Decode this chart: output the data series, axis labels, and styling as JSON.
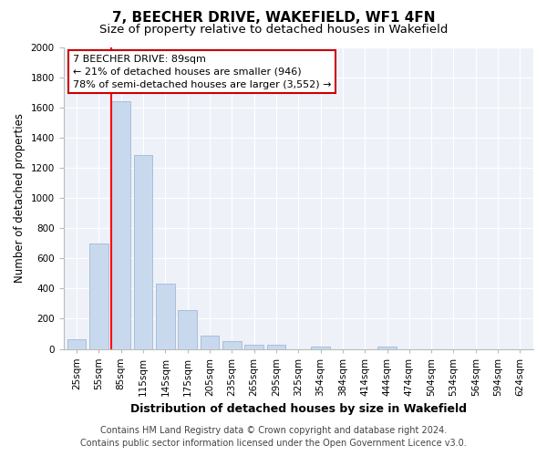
{
  "title": "7, BEECHER DRIVE, WAKEFIELD, WF1 4FN",
  "subtitle": "Size of property relative to detached houses in Wakefield",
  "xlabel": "Distribution of detached houses by size in Wakefield",
  "ylabel": "Number of detached properties",
  "bar_labels": [
    "25sqm",
    "55sqm",
    "85sqm",
    "115sqm",
    "145sqm",
    "175sqm",
    "205sqm",
    "235sqm",
    "265sqm",
    "295sqm",
    "325sqm",
    "354sqm",
    "384sqm",
    "414sqm",
    "444sqm",
    "474sqm",
    "504sqm",
    "534sqm",
    "564sqm",
    "594sqm",
    "624sqm"
  ],
  "bar_values": [
    65,
    695,
    1640,
    1285,
    435,
    255,
    90,
    50,
    25,
    25,
    0,
    15,
    0,
    0,
    15,
    0,
    0,
    0,
    0,
    0,
    0
  ],
  "bar_color": "#c8d9ee",
  "bar_edgecolor": "#a0b8d8",
  "red_line_index": 2,
  "annotation_line1": "7 BEECHER DRIVE: 89sqm",
  "annotation_line2": "← 21% of detached houses are smaller (946)",
  "annotation_line3": "78% of semi-detached houses are larger (3,552) →",
  "ylim": [
    0,
    2000
  ],
  "yticks": [
    0,
    200,
    400,
    600,
    800,
    1000,
    1200,
    1400,
    1600,
    1800,
    2000
  ],
  "footer_line1": "Contains HM Land Registry data © Crown copyright and database right 2024.",
  "footer_line2": "Contains public sector information licensed under the Open Government Licence v3.0.",
  "bg_color": "#ffffff",
  "plot_bg_color": "#eef2f8",
  "title_fontsize": 11,
  "subtitle_fontsize": 9.5,
  "xlabel_fontsize": 9,
  "ylabel_fontsize": 8.5,
  "tick_fontsize": 7.5,
  "footer_fontsize": 7,
  "annotation_box_edgecolor": "#cc0000",
  "grid_color": "#ffffff"
}
